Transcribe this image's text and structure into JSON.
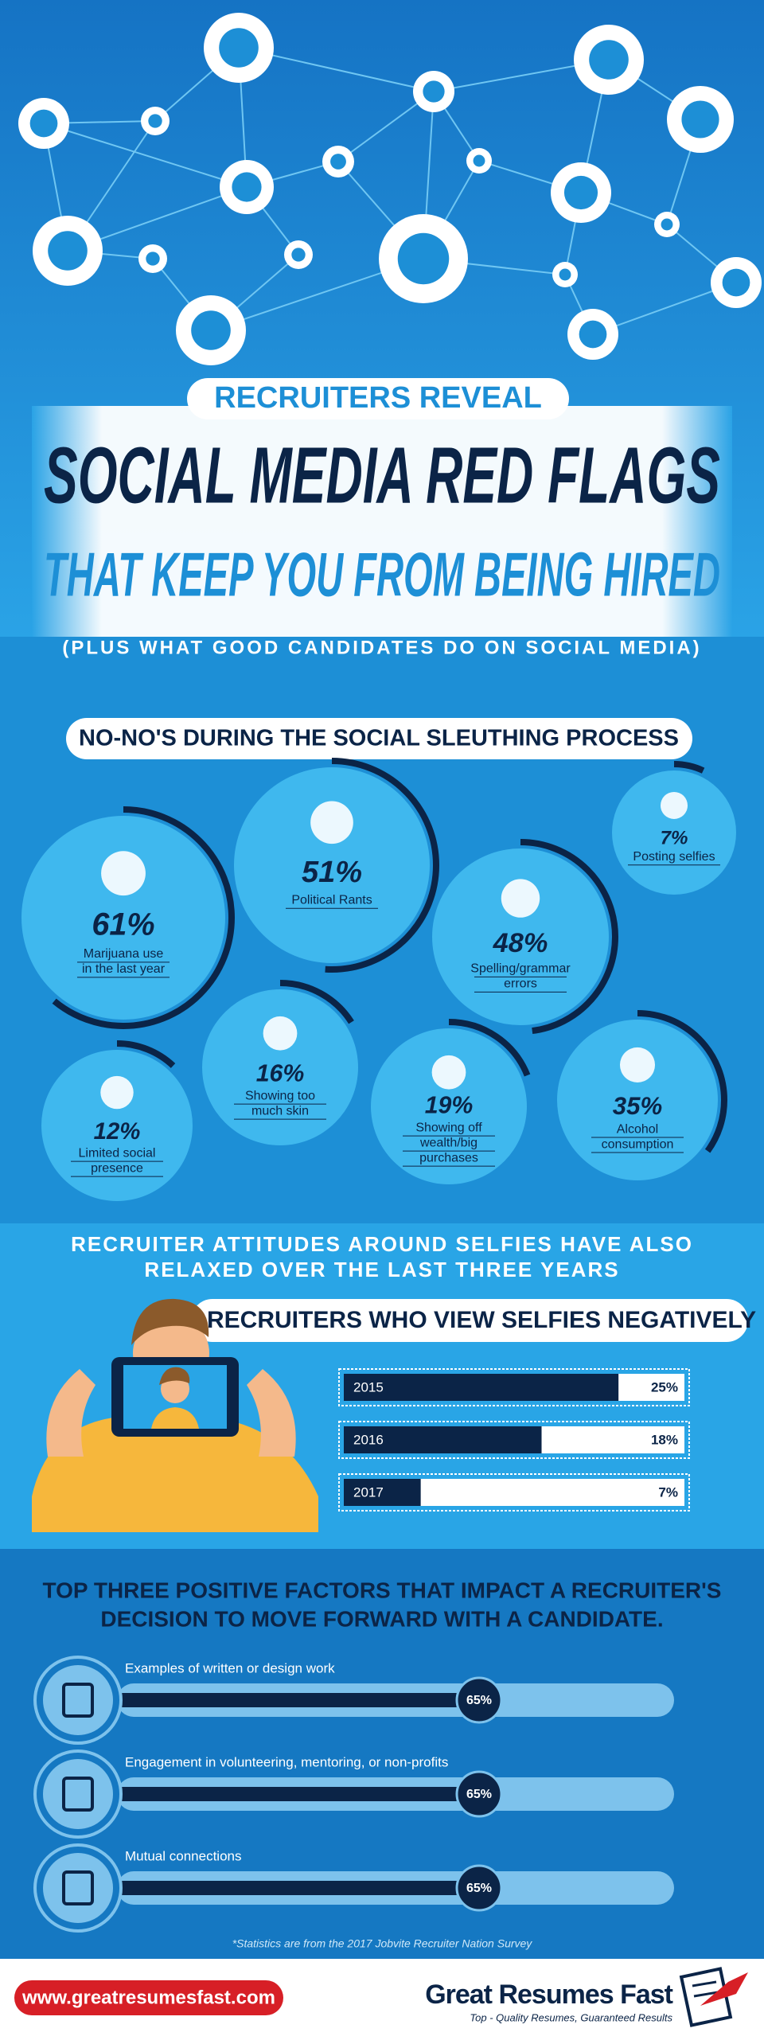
{
  "header": {
    "kicker": "RECRUITERS REVEAL",
    "title": "SOCIAL MEDIA RED FLAGS",
    "subtitle": "THAT KEEP YOU FROM BEING HIRED",
    "note": "(PLUS WHAT GOOD CANDIDATES DO ON SOCIAL MEDIA)"
  },
  "nonos": {
    "title": "NO-NO'S DURING THE SOCIAL SLEUTHING PROCESS",
    "items": [
      {
        "value": 61,
        "value_label": "61%",
        "label": [
          "Marijuana use",
          "in the last year"
        ]
      },
      {
        "value": 51,
        "value_label": "51%",
        "label": [
          "Political Rants"
        ]
      },
      {
        "value": 7,
        "value_label": "7%",
        "label": [
          "Posting selfies"
        ]
      },
      {
        "value": 48,
        "value_label": "48%",
        "label": [
          "Spelling/grammar",
          "errors"
        ]
      },
      {
        "value": 16,
        "value_label": "16%",
        "label": [
          "Showing too",
          "much skin"
        ]
      },
      {
        "value": 12,
        "value_label": "12%",
        "label": [
          "Limited social",
          "presence"
        ]
      },
      {
        "value": 19,
        "value_label": "19%",
        "label": [
          "Showing off",
          "wealth/big",
          "purchases"
        ]
      },
      {
        "value": 35,
        "value_label": "35%",
        "label": [
          "Alcohol",
          "consumption"
        ]
      }
    ]
  },
  "selfies": {
    "headline": [
      "RECRUITER ATTITUDES AROUND SELFIES HAVE ALSO",
      "RELAXED OVER THE LAST THREE YEARS"
    ],
    "title": "RECRUITERS WHO VIEW SELFIES NEGATIVELY",
    "categories": [
      "2015",
      "2016",
      "2017"
    ],
    "values": [
      25,
      18,
      7
    ],
    "value_labels": [
      "25%",
      "18%",
      "7%"
    ],
    "xlim": [
      0,
      31
    ]
  },
  "positives": {
    "title": [
      "TOP THREE POSITIVE FACTORS THAT IMPACT A RECRUITER'S",
      "DECISION TO MOVE FORWARD WITH A CANDIDATE."
    ],
    "items": [
      {
        "label": "Examples of written or design work",
        "value": 65,
        "value_label": "65%"
      },
      {
        "label": "Engagement in volunteering, mentoring, or non-profits",
        "value": 65,
        "value_label": "65%"
      },
      {
        "label": "Mutual connections",
        "value": 65,
        "value_label": "65%"
      }
    ],
    "xlim": [
      0,
      100
    ]
  },
  "footer": {
    "footnote": "*Statistics are from the 2017 Jobvite Recruiter Nation Survey",
    "url": "www.greatresumesfast.com",
    "brand": "Great Resumes Fast",
    "tagline": "Top - Quality Resumes, Guaranteed Results"
  }
}
